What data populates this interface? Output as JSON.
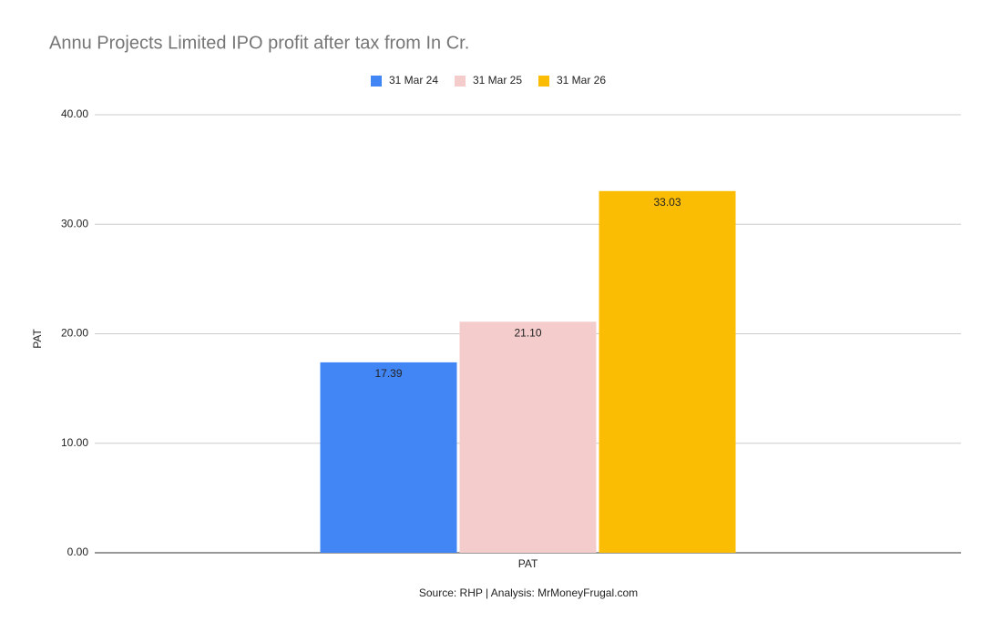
{
  "chart_data": {
    "type": "bar",
    "title": "Annu Projects Limited IPO profit after tax from In Cr.",
    "categories": [
      "PAT"
    ],
    "series": [
      {
        "name": "31 Mar 24",
        "color": "#4285f4",
        "values": [
          17.39
        ],
        "value_labels": [
          "17.39"
        ]
      },
      {
        "name": "31 Mar 25",
        "color": "#f4cccc",
        "values": [
          21.1
        ],
        "value_labels": [
          "21.10"
        ]
      },
      {
        "name": "31 Mar 26",
        "color": "#fbbc04",
        "values": [
          33.03
        ],
        "value_labels": [
          "33.03"
        ]
      }
    ],
    "y_label": "PAT",
    "x_label": "PAT",
    "source": "Source: RHP | Analysis: MrMoneyFrugal.com",
    "ylim": [
      0,
      40
    ],
    "yticks": [
      {
        "value": 0,
        "label": "0.00"
      },
      {
        "value": 10,
        "label": "10.00"
      },
      {
        "value": 20,
        "label": "20.00"
      },
      {
        "value": 30,
        "label": "30.00"
      },
      {
        "value": 40,
        "label": "40.00"
      }
    ],
    "grid": true,
    "legend": "top"
  }
}
